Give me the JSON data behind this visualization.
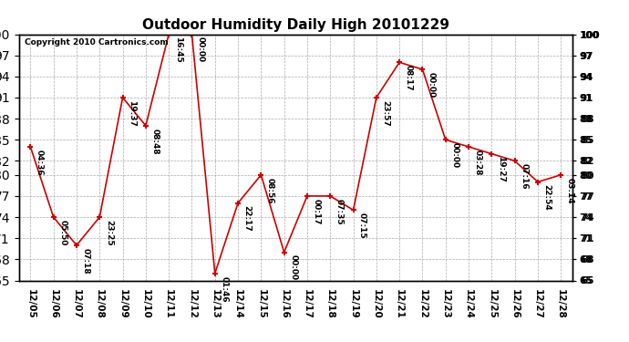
{
  "title": "Outdoor Humidity Daily High 20101229",
  "copyright": "Copyright 2010 Cartronics.com",
  "x_labels": [
    "12/05",
    "12/06",
    "12/07",
    "12/08",
    "12/09",
    "12/10",
    "12/11",
    "12/12",
    "12/13",
    "12/14",
    "12/15",
    "12/16",
    "12/17",
    "12/18",
    "12/19",
    "12/20",
    "12/21",
    "12/22",
    "12/23",
    "12/24",
    "12/25",
    "12/26",
    "12/27",
    "12/28"
  ],
  "y_values": [
    84,
    74,
    70,
    74,
    91,
    87,
    100,
    100,
    66,
    76,
    80,
    69,
    77,
    77,
    75,
    91,
    96,
    95,
    85,
    84,
    83,
    82,
    79,
    80
  ],
  "point_labels": [
    "04:36",
    "05:50",
    "07:18",
    "23:25",
    "19:37",
    "08:48",
    "16:45",
    "00:00",
    "01:46",
    "22:17",
    "08:56",
    "00:00",
    "00:17",
    "07:35",
    "07:15",
    "23:57",
    "08:17",
    "00:00",
    "00:00",
    "03:28",
    "19:27",
    "07:16",
    "22:54",
    "03:14"
  ],
  "line_color": "#cc0000",
  "marker_color": "#cc0000",
  "background_color": "#ffffff",
  "grid_color": "#aaaaaa",
  "ylim_min": 65,
  "ylim_max": 100,
  "yticks": [
    65,
    68,
    71,
    74,
    77,
    80,
    82,
    85,
    88,
    91,
    94,
    97,
    100
  ],
  "title_fontsize": 11,
  "label_fontsize": 6.5,
  "tick_fontsize": 7.5,
  "copyright_fontsize": 6.5
}
